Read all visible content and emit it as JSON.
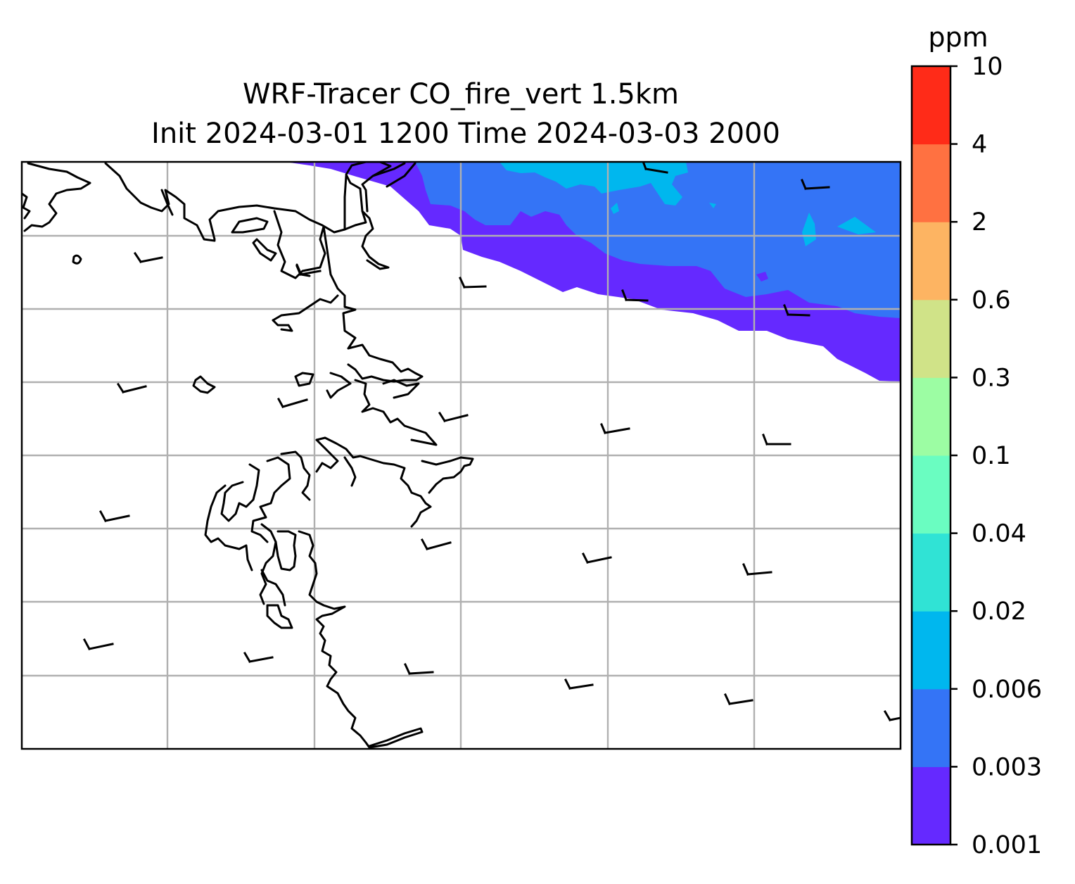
{
  "title_line1": "WRF-Tracer CO_fire_vert 1.5km",
  "title_line2": "Init 2024-03-01 1200 Time 2024-03-03 2000",
  "colorbar": {
    "unit": "ppm",
    "levels": [
      "0.001",
      "0.003",
      "0.006",
      "0.02",
      "0.04",
      "0.1",
      "0.3",
      "0.6",
      "2",
      "4",
      "10"
    ],
    "colors": [
      "#6529ff",
      "#3474f6",
      "#00b7ee",
      "#30e3d5",
      "#6afdc1",
      "#9cfda3",
      "#d0e388",
      "#fdb462",
      "#ff7141",
      "#ff2b18"
    ]
  },
  "map": {
    "fields": {
      "level_0_001": "#6529ff",
      "level_0_003": "#3474f6",
      "level_0_006": "#00b7ee"
    },
    "coastline_color": "#000000",
    "gridline_color": "#b0b0b0"
  }
}
